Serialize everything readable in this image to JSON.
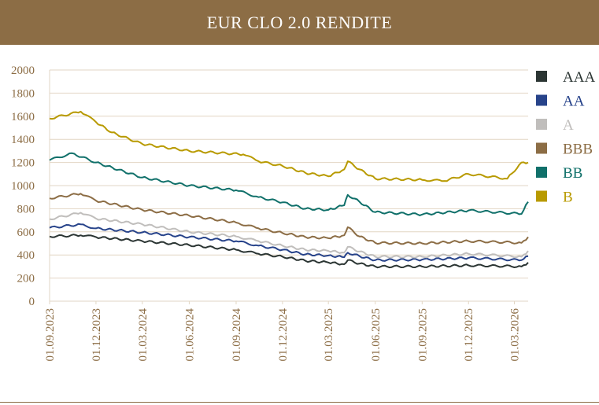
{
  "header": {
    "title": "EUR CLO 2.0 RENDITE"
  },
  "colors": {
    "header_bg": "#8c6d45",
    "grid": "#e2d6c4",
    "axis_text": "#8c6d45"
  },
  "chart_data": {
    "type": "line",
    "title": "EUR CLO 2.0 RENDITE",
    "xlabel": "",
    "ylabel": "",
    "ylim": [
      0,
      2000
    ],
    "y_ticks": [
      "0",
      "200",
      "400",
      "600",
      "800",
      "1000",
      "1200",
      "1400",
      "1600",
      "1800",
      "2000"
    ],
    "x_ticks": [
      "01.09.2023",
      "01.12.2023",
      "01.03.2024",
      "01.06.2024",
      "01.09.2024",
      "01.12.2024",
      "01.03.2025",
      "01.06.2025",
      "01.09.2025",
      "01.12.2025",
      "01.03.2026"
    ],
    "xlim": [
      "01.09.2023",
      "28.03.2026"
    ],
    "grid": "horizontal",
    "legend_position": "right",
    "series": [
      {
        "name": "AAA",
        "color": "#2b3533",
        "points": [
          [
            "01.09.2023",
            560
          ],
          [
            "01.11.2023",
            570
          ],
          [
            "01.12.2023",
            555
          ],
          [
            "01.03.2024",
            520
          ],
          [
            "01.06.2024",
            485
          ],
          [
            "01.09.2024",
            445
          ],
          [
            "15.10.2024",
            410
          ],
          [
            "01.12.2024",
            385
          ],
          [
            "15.01.2025",
            350
          ],
          [
            "01.03.2025",
            335
          ],
          [
            "01.04.2025",
            320
          ],
          [
            "08.04.2025",
            355
          ],
          [
            "01.05.2025",
            325
          ],
          [
            "01.06.2025",
            300
          ],
          [
            "01.09.2025",
            300
          ],
          [
            "01.12.2025",
            310
          ],
          [
            "15.03.2026",
            300
          ],
          [
            "28.03.2026",
            335
          ]
        ]
      },
      {
        "name": "AA",
        "color": "#27438a",
        "points": [
          [
            "01.09.2023",
            635
          ],
          [
            "01.11.2023",
            665
          ],
          [
            "01.12.2023",
            630
          ],
          [
            "01.03.2024",
            595
          ],
          [
            "01.06.2024",
            555
          ],
          [
            "01.09.2024",
            520
          ],
          [
            "15.10.2024",
            480
          ],
          [
            "01.12.2024",
            445
          ],
          [
            "15.01.2025",
            405
          ],
          [
            "01.03.2025",
            395
          ],
          [
            "01.04.2025",
            380
          ],
          [
            "08.04.2025",
            420
          ],
          [
            "01.05.2025",
            390
          ],
          [
            "01.06.2025",
            355
          ],
          [
            "01.09.2025",
            360
          ],
          [
            "01.12.2025",
            375
          ],
          [
            "15.03.2026",
            355
          ],
          [
            "28.03.2026",
            390
          ]
        ]
      },
      {
        "name": "A",
        "color": "#c0bebc",
        "points": [
          [
            "01.09.2023",
            710
          ],
          [
            "01.11.2023",
            765
          ],
          [
            "01.12.2023",
            715
          ],
          [
            "01.03.2024",
            665
          ],
          [
            "01.06.2024",
            600
          ],
          [
            "01.09.2024",
            560
          ],
          [
            "15.10.2024",
            520
          ],
          [
            "01.12.2024",
            480
          ],
          [
            "15.01.2025",
            445
          ],
          [
            "01.03.2025",
            435
          ],
          [
            "01.04.2025",
            420
          ],
          [
            "08.04.2025",
            470
          ],
          [
            "01.05.2025",
            430
          ],
          [
            "01.06.2025",
            385
          ],
          [
            "01.09.2025",
            385
          ],
          [
            "01.12.2025",
            410
          ],
          [
            "15.03.2026",
            385
          ],
          [
            "28.03.2026",
            435
          ]
        ]
      },
      {
        "name": "BBB",
        "color": "#8c6d45",
        "points": [
          [
            "01.09.2023",
            890
          ],
          [
            "01.11.2023",
            930
          ],
          [
            "01.12.2023",
            870
          ],
          [
            "01.03.2024",
            790
          ],
          [
            "01.06.2024",
            740
          ],
          [
            "01.09.2024",
            680
          ],
          [
            "15.10.2024",
            630
          ],
          [
            "01.12.2024",
            590
          ],
          [
            "15.01.2025",
            555
          ],
          [
            "01.03.2025",
            545
          ],
          [
            "01.04.2025",
            570
          ],
          [
            "08.04.2025",
            640
          ],
          [
            "01.05.2025",
            560
          ],
          [
            "01.06.2025",
            505
          ],
          [
            "01.09.2025",
            500
          ],
          [
            "01.12.2025",
            520
          ],
          [
            "15.03.2026",
            505
          ],
          [
            "28.03.2026",
            555
          ]
        ]
      },
      {
        "name": "BB",
        "color": "#10706a",
        "points": [
          [
            "01.09.2023",
            1220
          ],
          [
            "15.10.2023",
            1280
          ],
          [
            "01.12.2023",
            1200
          ],
          [
            "01.03.2024",
            1070
          ],
          [
            "01.06.2024",
            1000
          ],
          [
            "01.09.2024",
            960
          ],
          [
            "15.10.2024",
            900
          ],
          [
            "01.12.2024",
            855
          ],
          [
            "15.01.2025",
            800
          ],
          [
            "01.03.2025",
            790
          ],
          [
            "01.04.2025",
            830
          ],
          [
            "08.04.2025",
            920
          ],
          [
            "01.05.2025",
            860
          ],
          [
            "01.06.2025",
            770
          ],
          [
            "01.09.2025",
            750
          ],
          [
            "01.12.2025",
            785
          ],
          [
            "15.03.2026",
            755
          ],
          [
            "28.03.2026",
            860
          ]
        ]
      },
      {
        "name": "B",
        "color": "#b89a00",
        "points": [
          [
            "01.09.2023",
            1580
          ],
          [
            "01.11.2023",
            1640
          ],
          [
            "01.12.2023",
            1550
          ],
          [
            "01.01.2024",
            1460
          ],
          [
            "01.03.2024",
            1360
          ],
          [
            "01.06.2024",
            1300
          ],
          [
            "15.09.2024",
            1270
          ],
          [
            "15.10.2024",
            1210
          ],
          [
            "01.12.2024",
            1170
          ],
          [
            "15.01.2025",
            1110
          ],
          [
            "01.03.2025",
            1080
          ],
          [
            "01.04.2025",
            1140
          ],
          [
            "08.04.2025",
            1210
          ],
          [
            "01.05.2025",
            1140
          ],
          [
            "01.06.2025",
            1060
          ],
          [
            "01.09.2025",
            1050
          ],
          [
            "15.10.2025",
            1040
          ],
          [
            "01.12.2025",
            1100
          ],
          [
            "15.02.2026",
            1060
          ],
          [
            "15.03.2026",
            1200
          ],
          [
            "28.03.2026",
            1200
          ]
        ]
      }
    ]
  }
}
